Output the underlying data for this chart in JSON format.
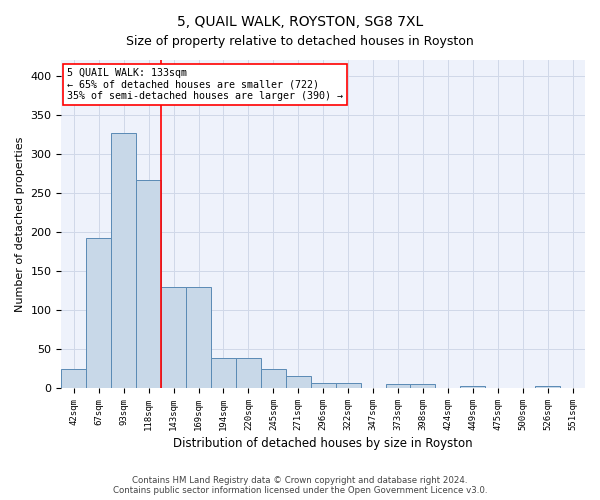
{
  "title": "5, QUAIL WALK, ROYSTON, SG8 7XL",
  "subtitle": "Size of property relative to detached houses in Royston",
  "xlabel": "Distribution of detached houses by size in Royston",
  "ylabel": "Number of detached properties",
  "categories": [
    "42sqm",
    "67sqm",
    "93sqm",
    "118sqm",
    "143sqm",
    "169sqm",
    "194sqm",
    "220sqm",
    "245sqm",
    "271sqm",
    "296sqm",
    "322sqm",
    "347sqm",
    "373sqm",
    "398sqm",
    "424sqm",
    "449sqm",
    "475sqm",
    "500sqm",
    "526sqm",
    "551sqm"
  ],
  "values": [
    25,
    192,
    327,
    267,
    130,
    130,
    38,
    38,
    25,
    15,
    7,
    7,
    0,
    5,
    5,
    0,
    3,
    0,
    0,
    3,
    0
  ],
  "bar_color": "#c8d8e8",
  "bar_edge_color": "#5a8ab5",
  "ylim": [
    0,
    420
  ],
  "yticks": [
    0,
    50,
    100,
    150,
    200,
    250,
    300,
    350,
    400
  ],
  "property_label": "5 QUAIL WALK: 133sqm",
  "pct_smaller": 65,
  "n_smaller": 722,
  "pct_larger": 35,
  "n_larger": 390,
  "vline_bin_index": 3,
  "footnote": "Contains HM Land Registry data © Crown copyright and database right 2024.\nContains public sector information licensed under the Open Government Licence v3.0.",
  "grid_color": "#d0d8e8",
  "background_color": "#eef2fb"
}
